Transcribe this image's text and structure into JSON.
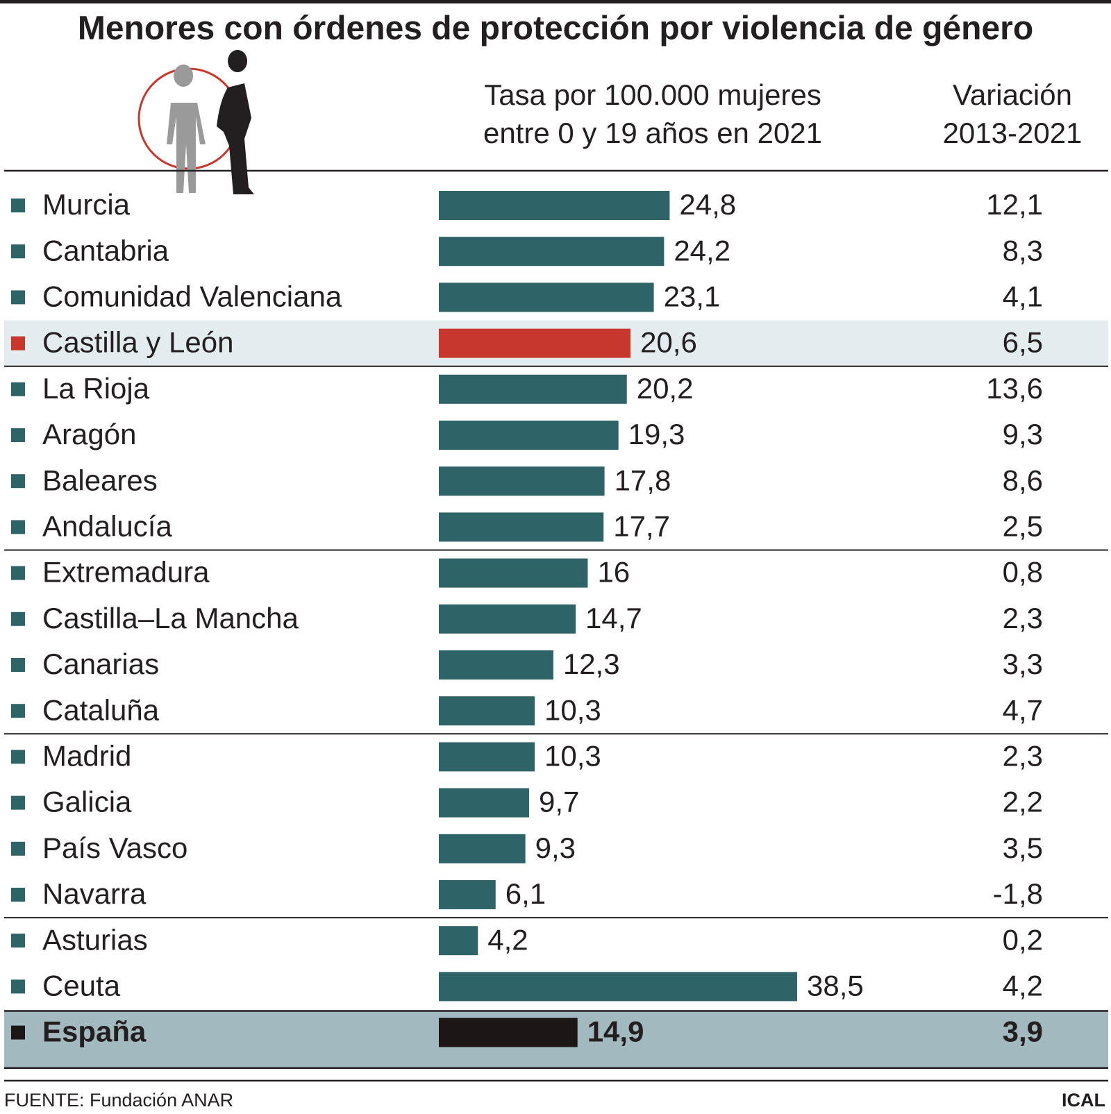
{
  "chart_data": {
    "type": "bar",
    "orientation": "horizontal",
    "title": "Menores con órdenes de protección por violencia de género",
    "value_header": [
      "Tasa por 100.000 mujeres",
      "entre 0 y 19 años en 2021"
    ],
    "categories": [
      "Murcia",
      "Cantabria",
      "Comunidad Valenciana",
      "Castilla y León",
      "La Rioja",
      "Aragón",
      "Baleares",
      "Andalucía",
      "Extremadura",
      "Castilla–La Mancha",
      "Canarias",
      "Cataluña",
      "Madrid",
      "Galicia",
      "País Vasco",
      "Navarra",
      "Asturias",
      "Ceuta",
      "España"
    ],
    "values": [
      24.8,
      24.2,
      23.1,
      20.6,
      20.2,
      19.3,
      17.8,
      17.7,
      16,
      14.7,
      12.3,
      10.3,
      10.3,
      9.7,
      9.3,
      6.1,
      4.2,
      38.5,
      14.9
    ],
    "value_labels": [
      "24,8",
      "24,2",
      "23,1",
      "20,6",
      "20,2",
      "19,3",
      "17,8",
      "17,7",
      "16",
      "14,7",
      "12,3",
      "10,3",
      "10,3",
      "9,7",
      "9,3",
      "6,1",
      "4,2",
      "38,5",
      "14,9"
    ],
    "colors": [
      "#2e6368",
      "#2e6368",
      "#2e6368",
      "#c8372d",
      "#2e6368",
      "#2e6368",
      "#2e6368",
      "#2e6368",
      "#2e6368",
      "#2e6368",
      "#2e6368",
      "#2e6368",
      "#2e6368",
      "#2e6368",
      "#2e6368",
      "#2e6368",
      "#2e6368",
      "#2e6368",
      "#1c1716"
    ],
    "variation": {
      "header": [
        "Variación",
        "2013-2021"
      ],
      "values": [
        12.1,
        8.3,
        4.1,
        6.5,
        13.6,
        9.3,
        8.6,
        2.5,
        0.8,
        2.3,
        3.3,
        4.7,
        2.3,
        2.2,
        3.5,
        -1.8,
        0.2,
        4.2,
        3.9
      ],
      "value_labels": [
        "12,1",
        "8,3",
        "4,1",
        "6,5",
        "13,6",
        "9,3",
        "8,6",
        "2,5",
        "0,8",
        "2,3",
        "3,3",
        "4,7",
        "2,3",
        "2,2",
        "3,5",
        "-1,8",
        "0,2",
        "4,2",
        "3,9"
      ]
    },
    "source": "FUENTE: Fundación ANAR",
    "credit": "ICAL"
  }
}
